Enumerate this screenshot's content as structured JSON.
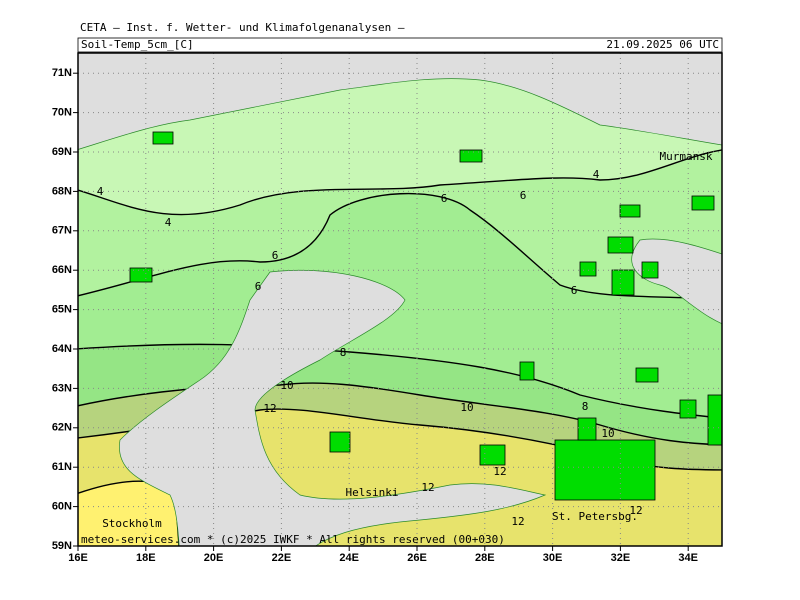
{
  "header": {
    "title": "CETA — Inst. f. Wetter- und Klimafolgenanalysen —",
    "parameter": "Soil-Temp_5cm_[C]",
    "valid_time": "21.09.2025 06 UTC"
  },
  "map": {
    "lat_ticks": [
      {
        "value": 59,
        "label": "59N"
      },
      {
        "value": 60,
        "label": "60N"
      },
      {
        "value": 61,
        "label": "61N"
      },
      {
        "value": 62,
        "label": "62N"
      },
      {
        "value": 63,
        "label": "63N"
      },
      {
        "value": 64,
        "label": "64N"
      },
      {
        "value": 65,
        "label": "65N"
      },
      {
        "value": 66,
        "label": "66N"
      },
      {
        "value": 67,
        "label": "67N"
      },
      {
        "value": 68,
        "label": "68N"
      },
      {
        "value": 69,
        "label": "69N"
      },
      {
        "value": 70,
        "label": "70N"
      },
      {
        "value": 71,
        "label": "71N"
      }
    ],
    "lon_ticks": [
      {
        "value": 16,
        "label": "16E"
      },
      {
        "value": 18,
        "label": "18E"
      },
      {
        "value": 20,
        "label": "20E"
      },
      {
        "value": 22,
        "label": "22E"
      },
      {
        "value": 24,
        "label": "24E"
      },
      {
        "value": 26,
        "label": "26E"
      },
      {
        "value": 28,
        "label": "28E"
      },
      {
        "value": 30,
        "label": "30E"
      },
      {
        "value": 32,
        "label": "32E"
      },
      {
        "value": 34,
        "label": "34E"
      }
    ],
    "contour_labels": [
      4,
      4,
      4,
      6,
      6,
      6,
      6,
      6,
      8,
      8,
      10,
      10,
      10,
      12,
      12,
      12,
      12,
      12
    ],
    "places": [
      "Murmansk",
      "Helsinki",
      "Stockholm",
      "St. Petersbg."
    ],
    "copyright": "meteo-services.com * (c)2025 IWKF * All rights reserved (00+030)"
  }
}
